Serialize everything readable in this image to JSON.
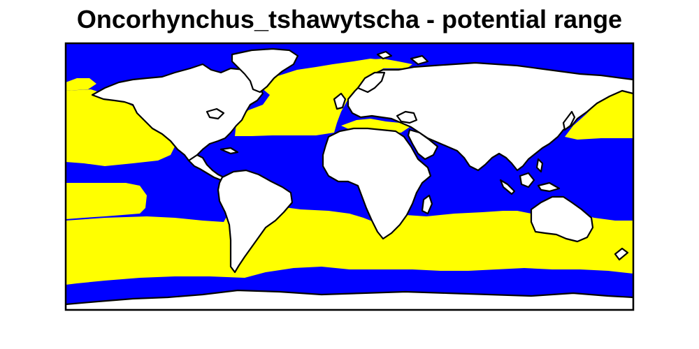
{
  "title": "Oncorhynchus_tshawytscha - potential range",
  "colors": {
    "ocean_outside_range": "#0000ff",
    "potential_range": "#ffff00",
    "land": "#ffffff",
    "coastline": "#000000"
  }
}
